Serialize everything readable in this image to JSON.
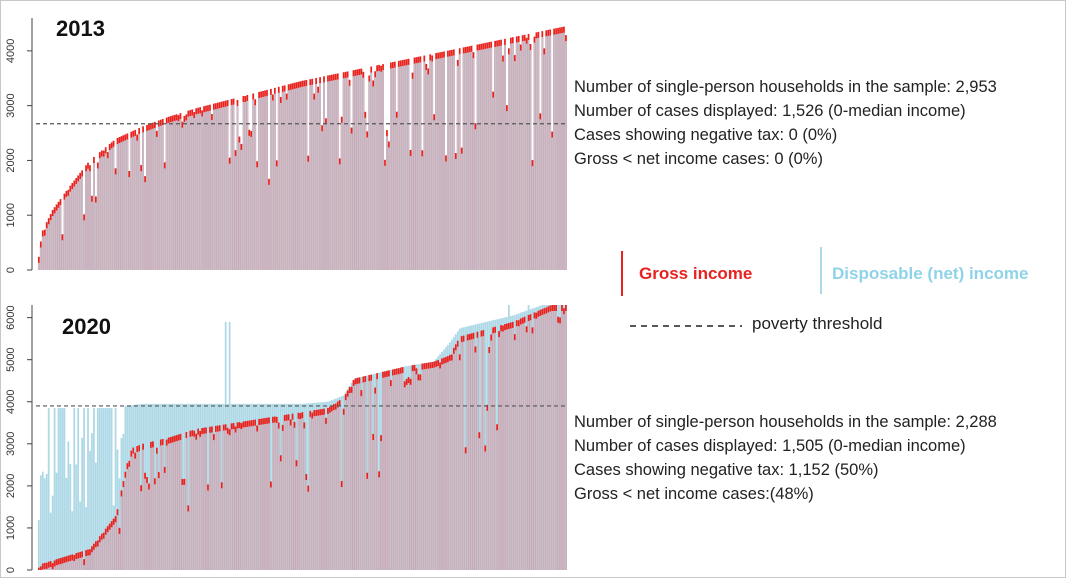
{
  "chart_data": [
    {
      "type": "bar",
      "title": "2013",
      "y_ticks": [
        0,
        1000,
        2000,
        3000,
        4000
      ],
      "ylim": [
        0,
        4600
      ],
      "poverty_threshold": 2670,
      "cases_displayed": 1526,
      "series": [
        {
          "name": "Gross income",
          "color": "#e8231f",
          "profile_x": [
            0,
            0.01,
            0.03,
            0.06,
            0.1,
            0.15,
            0.2,
            0.25,
            0.3,
            0.4,
            0.5,
            0.6,
            0.7,
            0.8,
            0.9,
            1.0
          ],
          "profile_y": [
            0,
            700,
            1100,
            1500,
            2000,
            2400,
            2620,
            2800,
            2950,
            3200,
            3450,
            3650,
            3850,
            4050,
            4250,
            4450
          ]
        },
        {
          "name": "Disposable (net) income",
          "color": "#add8e6",
          "note_equal_to_gross": true
        }
      ],
      "info": [
        "Number of single-person households in the sample: 2,953",
        "Number of cases displayed: 1,526 (0-median income)",
        "Cases showing negative tax: 0 (0%)",
        "Gross < net income cases: 0 (0%)"
      ]
    },
    {
      "type": "bar",
      "title": "2020",
      "y_ticks": [
        0,
        1000,
        2000,
        3000,
        4000,
        5000,
        6000
      ],
      "ylim": [
        0,
        6300
      ],
      "poverty_threshold": 3900,
      "cases_displayed": 1505,
      "series": [
        {
          "name": "Gross income",
          "color": "#e8231f",
          "profile_x": [
            0,
            0.01,
            0.1,
            0.15,
            0.17,
            0.18,
            0.2,
            0.25,
            0.3,
            0.4,
            0.5,
            0.55,
            0.58,
            0.6,
            0.7,
            0.75,
            0.78,
            0.8,
            0.9,
            1.0
          ],
          "profile_y": [
            0,
            150,
            500,
            1300,
            2500,
            2900,
            3000,
            3150,
            3350,
            3550,
            3750,
            3850,
            4100,
            4550,
            4850,
            4950,
            5100,
            5550,
            5900,
            6450
          ]
        },
        {
          "name": "Disposable (net) income",
          "color": "#add8e6",
          "profile_x": [
            0,
            0.01,
            0.1,
            0.15,
            0.17,
            0.2,
            0.3,
            0.4,
            0.5,
            0.55,
            0.58,
            0.6,
            0.7,
            0.75,
            0.78,
            0.8,
            0.9,
            1.0
          ],
          "profile_y": [
            0,
            3850,
            3850,
            3850,
            3900,
            3950,
            3950,
            3950,
            3950,
            4000,
            4150,
            4550,
            4850,
            4950,
            5400,
            5750,
            6050,
            6500
          ]
        }
      ],
      "info": [
        "Number of single-person households in the sample: 2,288",
        "Number of cases displayed: 1,505 (0-median income)",
        "Cases showing negative tax: 1,152 (50%)",
        "Gross < net income cases:(48%)"
      ]
    }
  ],
  "legend": {
    "gross_label": "Gross income",
    "net_label": "Disposable (net) income",
    "threshold_dashes": "- - - - - - - - - -",
    "threshold_label": "poverty threshold"
  }
}
